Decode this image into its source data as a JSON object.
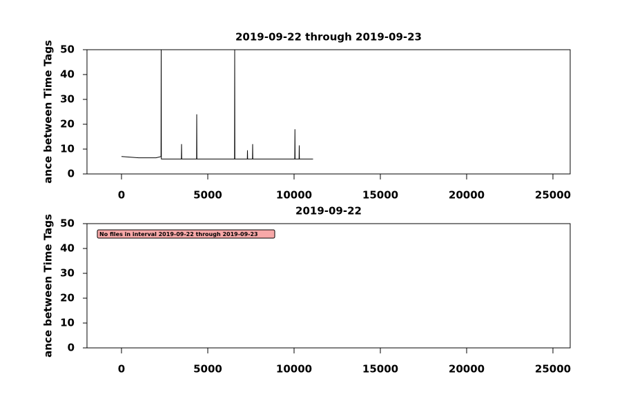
{
  "chart_data": [
    {
      "type": "line",
      "title": "2019-09-22 through 2019-09-23",
      "ylabel": "ance between Time Tags",
      "x": [
        0,
        1000,
        2000,
        2290,
        2300,
        2310,
        3470,
        3480,
        3490,
        4350,
        4360,
        4370,
        6550,
        6560,
        6570,
        7290,
        7300,
        7310,
        7590,
        7600,
        7610,
        10040,
        10050,
        10060,
        10290,
        10300,
        10310,
        11100
      ],
      "values": [
        7,
        6.5,
        6.5,
        7,
        50,
        6,
        6,
        12,
        6,
        6,
        24,
        6,
        6,
        50,
        6,
        6,
        9.5,
        6,
        6,
        12,
        6,
        6,
        18,
        6,
        6,
        11.5,
        6,
        6
      ],
      "color": "#000000",
      "xlim": [
        -2000,
        26000
      ],
      "xticks": [
        0,
        5000,
        10000,
        15000,
        20000,
        25000
      ],
      "ylim": [
        0,
        50
      ],
      "yticks": [
        0,
        10,
        20,
        30,
        40,
        50
      ],
      "grid": false
    },
    {
      "type": "line",
      "title": "2019-09-22",
      "ylabel": "ance between Time Tags",
      "x": [],
      "values": [],
      "color": "#000000",
      "annotation": "No files in interval 2019-09-22 through 2019-09-23",
      "xlim": [
        -2000,
        26000
      ],
      "xticks": [
        0,
        5000,
        10000,
        15000,
        20000,
        25000
      ],
      "ylim": [
        0,
        50
      ],
      "yticks": [
        0,
        10,
        20,
        30,
        40,
        50
      ],
      "grid": false
    }
  ]
}
